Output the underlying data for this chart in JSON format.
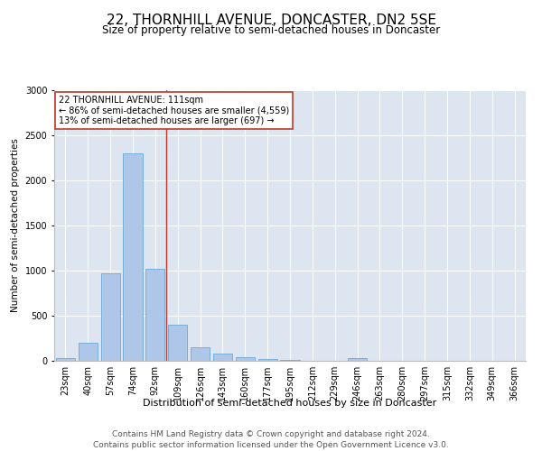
{
  "title_line1": "22, THORNHILL AVENUE, DONCASTER, DN2 5SE",
  "title_line2": "Size of property relative to semi-detached houses in Doncaster",
  "xlabel": "Distribution of semi-detached houses by size in Doncaster",
  "ylabel": "Number of semi-detached properties",
  "property_label": "22 THORNHILL AVENUE: 111sqm",
  "smaller_text": "← 86% of semi-detached houses are smaller (4,559)",
  "larger_text": "13% of semi-detached houses are larger (697) →",
  "categories": [
    "23sqm",
    "40sqm",
    "57sqm",
    "74sqm",
    "92sqm",
    "109sqm",
    "126sqm",
    "143sqm",
    "160sqm",
    "177sqm",
    "195sqm",
    "212sqm",
    "229sqm",
    "246sqm",
    "263sqm",
    "280sqm",
    "297sqm",
    "315sqm",
    "332sqm",
    "349sqm",
    "366sqm"
  ],
  "values": [
    30,
    200,
    975,
    2300,
    1025,
    400,
    150,
    85,
    45,
    20,
    10,
    5,
    5,
    30,
    5,
    3,
    3,
    3,
    3,
    3,
    3
  ],
  "bar_color": "#aec6e8",
  "bar_edge_color": "#5a9fd4",
  "vline_color": "#c0392b",
  "vline_index": 5,
  "annotation_box_color": "#c0392b",
  "background_color": "#dde6f0",
  "ylim": [
    0,
    3000
  ],
  "yticks": [
    0,
    500,
    1000,
    1500,
    2000,
    2500,
    3000
  ],
  "footer_line1": "Contains HM Land Registry data © Crown copyright and database right 2024.",
  "footer_line2": "Contains public sector information licensed under the Open Government Licence v3.0.",
  "title1_fontsize": 11,
  "title2_fontsize": 8.5,
  "xlabel_fontsize": 8,
  "ylabel_fontsize": 7.5,
  "tick_fontsize": 7,
  "footer_fontsize": 6.5,
  "annot_fontsize": 7
}
